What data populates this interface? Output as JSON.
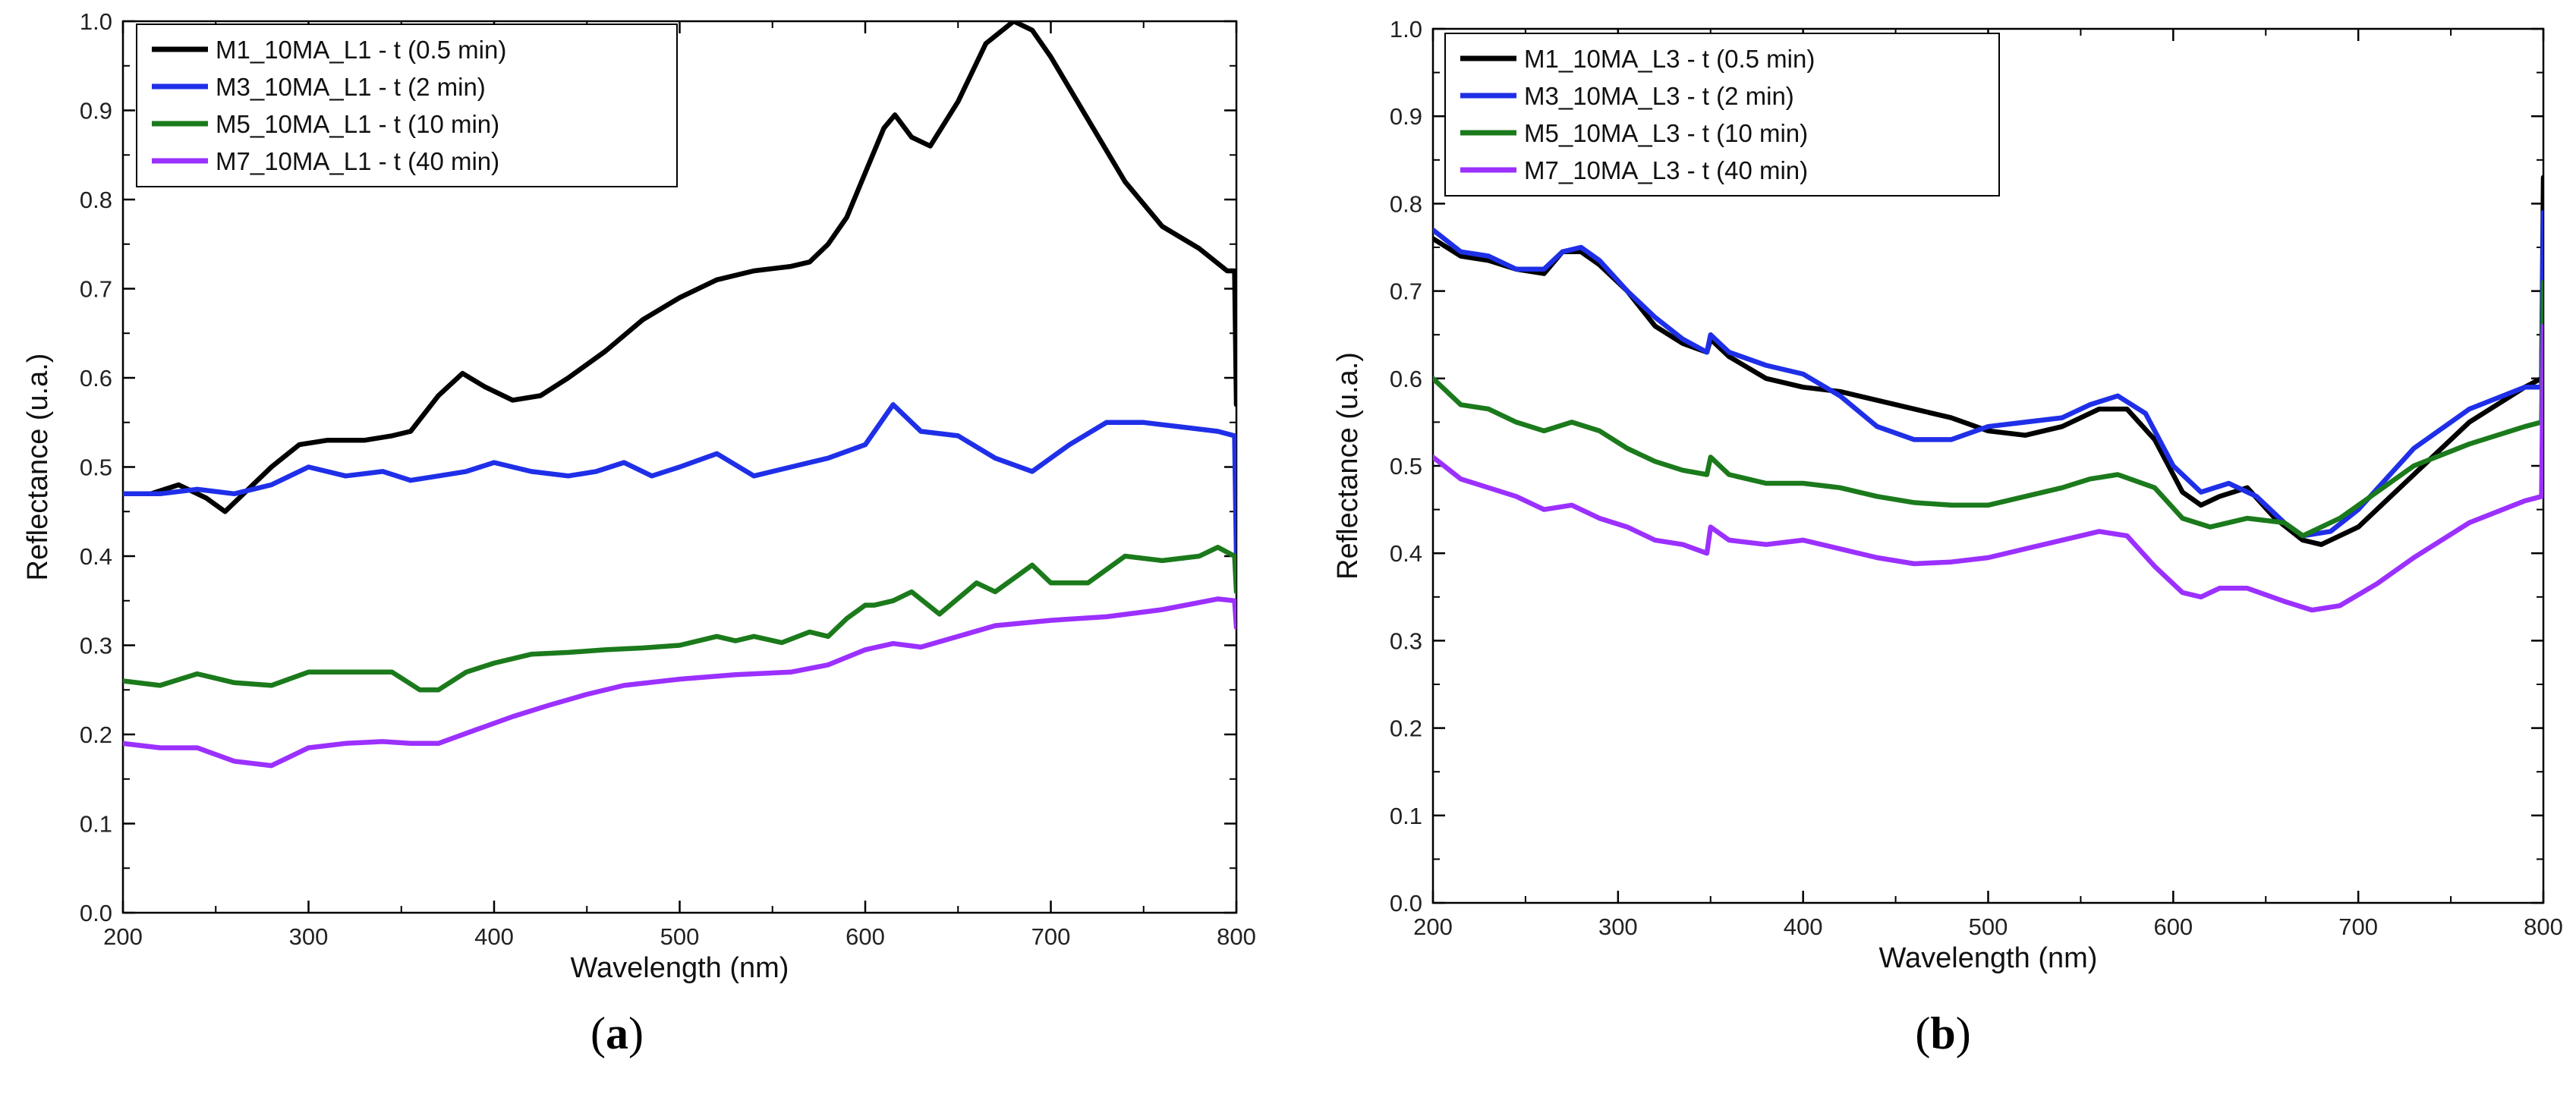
{
  "colors": {
    "black_series": "#000000",
    "blue_series": "#1f2fe8",
    "green_series": "#1b7a1b",
    "violet_series": "#9b30ff"
  },
  "chart_data": [
    {
      "type": "line",
      "panel_label": "(a)",
      "panel_letter": "a",
      "xlabel": "Wavelength (nm)",
      "ylabel": "Reflectance (u.a.)",
      "xlim": [
        200,
        800
      ],
      "ylim": [
        0,
        1.0
      ],
      "xticks": [
        "200",
        "300",
        "400",
        "500",
        "600",
        "700",
        "800"
      ],
      "yticks": [
        "0.0",
        "0.1",
        "0.2",
        "0.3",
        "0.4",
        "0.5",
        "0.6",
        "0.7",
        "0.8",
        "0.9",
        "1.0"
      ],
      "grid": false,
      "legend_position": "top-left",
      "series": [
        {
          "name": "M1_10MA_L1 - t (0.5 min)",
          "color": "#000000",
          "x": [
            200,
            215,
            230,
            245,
            255,
            265,
            280,
            295,
            310,
            330,
            345,
            355,
            370,
            383,
            395,
            410,
            425,
            440,
            460,
            480,
            500,
            520,
            540,
            560,
            570,
            580,
            590,
            600,
            610,
            616,
            625,
            635,
            650,
            665,
            680,
            690,
            700,
            720,
            740,
            760,
            780,
            795,
            799,
            800
          ],
          "y": [
            0.47,
            0.47,
            0.48,
            0.465,
            0.45,
            0.47,
            0.5,
            0.525,
            0.53,
            0.53,
            0.535,
            0.54,
            0.58,
            0.605,
            0.59,
            0.575,
            0.58,
            0.6,
            0.63,
            0.665,
            0.69,
            0.71,
            0.72,
            0.725,
            0.73,
            0.75,
            0.78,
            0.83,
            0.88,
            0.895,
            0.87,
            0.86,
            0.91,
            0.975,
            1.0,
            0.99,
            0.96,
            0.89,
            0.82,
            0.77,
            0.745,
            0.72,
            0.72,
            0.57
          ]
        },
        {
          "name": "M3_10MA_L1 - t (2 min)",
          "color": "#1f2fe8",
          "x": [
            200,
            220,
            240,
            260,
            280,
            300,
            320,
            340,
            355,
            370,
            385,
            400,
            420,
            440,
            455,
            470,
            485,
            500,
            520,
            540,
            560,
            580,
            600,
            615,
            630,
            650,
            670,
            690,
            710,
            730,
            750,
            770,
            790,
            799,
            800
          ],
          "y": [
            0.47,
            0.47,
            0.475,
            0.47,
            0.48,
            0.5,
            0.49,
            0.495,
            0.485,
            0.49,
            0.495,
            0.505,
            0.495,
            0.49,
            0.495,
            0.505,
            0.49,
            0.5,
            0.515,
            0.49,
            0.5,
            0.51,
            0.525,
            0.57,
            0.54,
            0.535,
            0.51,
            0.495,
            0.525,
            0.55,
            0.55,
            0.545,
            0.54,
            0.535,
            0.4
          ]
        },
        {
          "name": "M5_10MA_L1 - t (10 min)",
          "color": "#1b7a1b",
          "x": [
            200,
            220,
            240,
            260,
            280,
            300,
            320,
            345,
            360,
            370,
            385,
            400,
            420,
            440,
            460,
            480,
            500,
            520,
            530,
            540,
            555,
            570,
            580,
            590,
            600,
            605,
            615,
            625,
            640,
            660,
            670,
            690,
            700,
            720,
            740,
            760,
            780,
            790,
            799,
            800
          ],
          "y": [
            0.26,
            0.255,
            0.268,
            0.258,
            0.255,
            0.27,
            0.27,
            0.27,
            0.25,
            0.25,
            0.27,
            0.28,
            0.29,
            0.292,
            0.295,
            0.297,
            0.3,
            0.31,
            0.305,
            0.31,
            0.303,
            0.315,
            0.31,
            0.33,
            0.345,
            0.345,
            0.35,
            0.36,
            0.335,
            0.37,
            0.36,
            0.39,
            0.37,
            0.37,
            0.4,
            0.395,
            0.4,
            0.41,
            0.4,
            0.36
          ]
        },
        {
          "name": "M7_10MA_L1 - t (40 min)",
          "color": "#9b30ff",
          "x": [
            200,
            220,
            240,
            260,
            280,
            300,
            320,
            340,
            355,
            370,
            390,
            410,
            430,
            450,
            470,
            500,
            530,
            560,
            580,
            600,
            615,
            630,
            650,
            670,
            700,
            730,
            760,
            790,
            799,
            800
          ],
          "y": [
            0.19,
            0.185,
            0.185,
            0.17,
            0.165,
            0.185,
            0.19,
            0.192,
            0.19,
            0.19,
            0.205,
            0.22,
            0.233,
            0.245,
            0.255,
            0.262,
            0.267,
            0.27,
            0.278,
            0.295,
            0.302,
            0.298,
            0.31,
            0.322,
            0.328,
            0.332,
            0.34,
            0.352,
            0.35,
            0.32
          ]
        }
      ]
    },
    {
      "type": "line",
      "panel_label": "(b)",
      "panel_letter": "b",
      "xlabel": "Wavelength (nm)",
      "ylabel": "Reflectance (u.a.)",
      "xlim": [
        200,
        800
      ],
      "ylim": [
        0,
        1.0
      ],
      "xticks": [
        "200",
        "300",
        "400",
        "500",
        "600",
        "700",
        "800"
      ],
      "yticks": [
        "0.0",
        "0.1",
        "0.2",
        "0.3",
        "0.4",
        "0.5",
        "0.6",
        "0.7",
        "0.8",
        "0.9",
        "1.0"
      ],
      "grid": false,
      "legend_position": "top-left",
      "series": [
        {
          "name": "M1_10MA_L3 - t (0.5 min)",
          "color": "#000000",
          "x": [
            200,
            215,
            230,
            245,
            260,
            270,
            280,
            290,
            305,
            320,
            335,
            348,
            350,
            360,
            380,
            400,
            420,
            440,
            460,
            480,
            500,
            520,
            540,
            560,
            575,
            590,
            605,
            615,
            625,
            640,
            655,
            670,
            680,
            700,
            730,
            760,
            790,
            799,
            800
          ],
          "y": [
            0.76,
            0.74,
            0.735,
            0.725,
            0.72,
            0.745,
            0.745,
            0.73,
            0.7,
            0.66,
            0.64,
            0.63,
            0.645,
            0.625,
            0.6,
            0.59,
            0.585,
            0.575,
            0.565,
            0.555,
            0.54,
            0.535,
            0.545,
            0.565,
            0.565,
            0.53,
            0.47,
            0.455,
            0.465,
            0.475,
            0.44,
            0.415,
            0.41,
            0.43,
            0.49,
            0.55,
            0.59,
            0.6,
            0.83
          ]
        },
        {
          "name": "M3_10MA_L3 - t (2 min)",
          "color": "#1f2fe8",
          "x": [
            200,
            215,
            230,
            245,
            260,
            270,
            280,
            290,
            305,
            320,
            335,
            348,
            350,
            360,
            380,
            400,
            420,
            440,
            460,
            480,
            500,
            520,
            540,
            555,
            570,
            585,
            600,
            615,
            630,
            645,
            660,
            670,
            685,
            700,
            730,
            760,
            790,
            799,
            800
          ],
          "y": [
            0.77,
            0.745,
            0.74,
            0.725,
            0.725,
            0.745,
            0.75,
            0.735,
            0.7,
            0.67,
            0.645,
            0.63,
            0.65,
            0.63,
            0.615,
            0.605,
            0.58,
            0.545,
            0.53,
            0.53,
            0.545,
            0.55,
            0.555,
            0.57,
            0.58,
            0.56,
            0.5,
            0.47,
            0.48,
            0.465,
            0.435,
            0.42,
            0.425,
            0.45,
            0.52,
            0.565,
            0.59,
            0.59,
            0.79
          ]
        },
        {
          "name": "M5_10MA_L3 - t (10 min)",
          "color": "#1b7a1b",
          "x": [
            200,
            215,
            230,
            245,
            260,
            275,
            290,
            305,
            320,
            335,
            348,
            350,
            360,
            380,
            400,
            420,
            440,
            460,
            480,
            500,
            520,
            540,
            555,
            570,
            590,
            605,
            620,
            640,
            660,
            670,
            690,
            710,
            730,
            760,
            790,
            799,
            800
          ],
          "y": [
            0.6,
            0.57,
            0.565,
            0.55,
            0.54,
            0.55,
            0.54,
            0.52,
            0.505,
            0.495,
            0.49,
            0.51,
            0.49,
            0.48,
            0.48,
            0.475,
            0.465,
            0.458,
            0.455,
            0.455,
            0.465,
            0.475,
            0.485,
            0.49,
            0.475,
            0.44,
            0.43,
            0.44,
            0.435,
            0.42,
            0.44,
            0.47,
            0.5,
            0.525,
            0.545,
            0.55,
            0.71
          ]
        },
        {
          "name": "M7_10MA_L3 - t (40 min)",
          "color": "#9b30ff",
          "x": [
            200,
            215,
            230,
            245,
            260,
            275,
            290,
            305,
            320,
            335,
            348,
            350,
            360,
            380,
            400,
            420,
            440,
            460,
            480,
            500,
            520,
            540,
            560,
            575,
            590,
            605,
            615,
            625,
            640,
            660,
            675,
            690,
            710,
            730,
            760,
            790,
            799,
            800
          ],
          "y": [
            0.51,
            0.485,
            0.475,
            0.465,
            0.45,
            0.455,
            0.44,
            0.43,
            0.415,
            0.41,
            0.4,
            0.43,
            0.415,
            0.41,
            0.415,
            0.405,
            0.395,
            0.388,
            0.39,
            0.395,
            0.405,
            0.415,
            0.425,
            0.42,
            0.385,
            0.355,
            0.35,
            0.36,
            0.36,
            0.345,
            0.335,
            0.34,
            0.365,
            0.395,
            0.435,
            0.46,
            0.465,
            0.66
          ]
        }
      ]
    }
  ]
}
